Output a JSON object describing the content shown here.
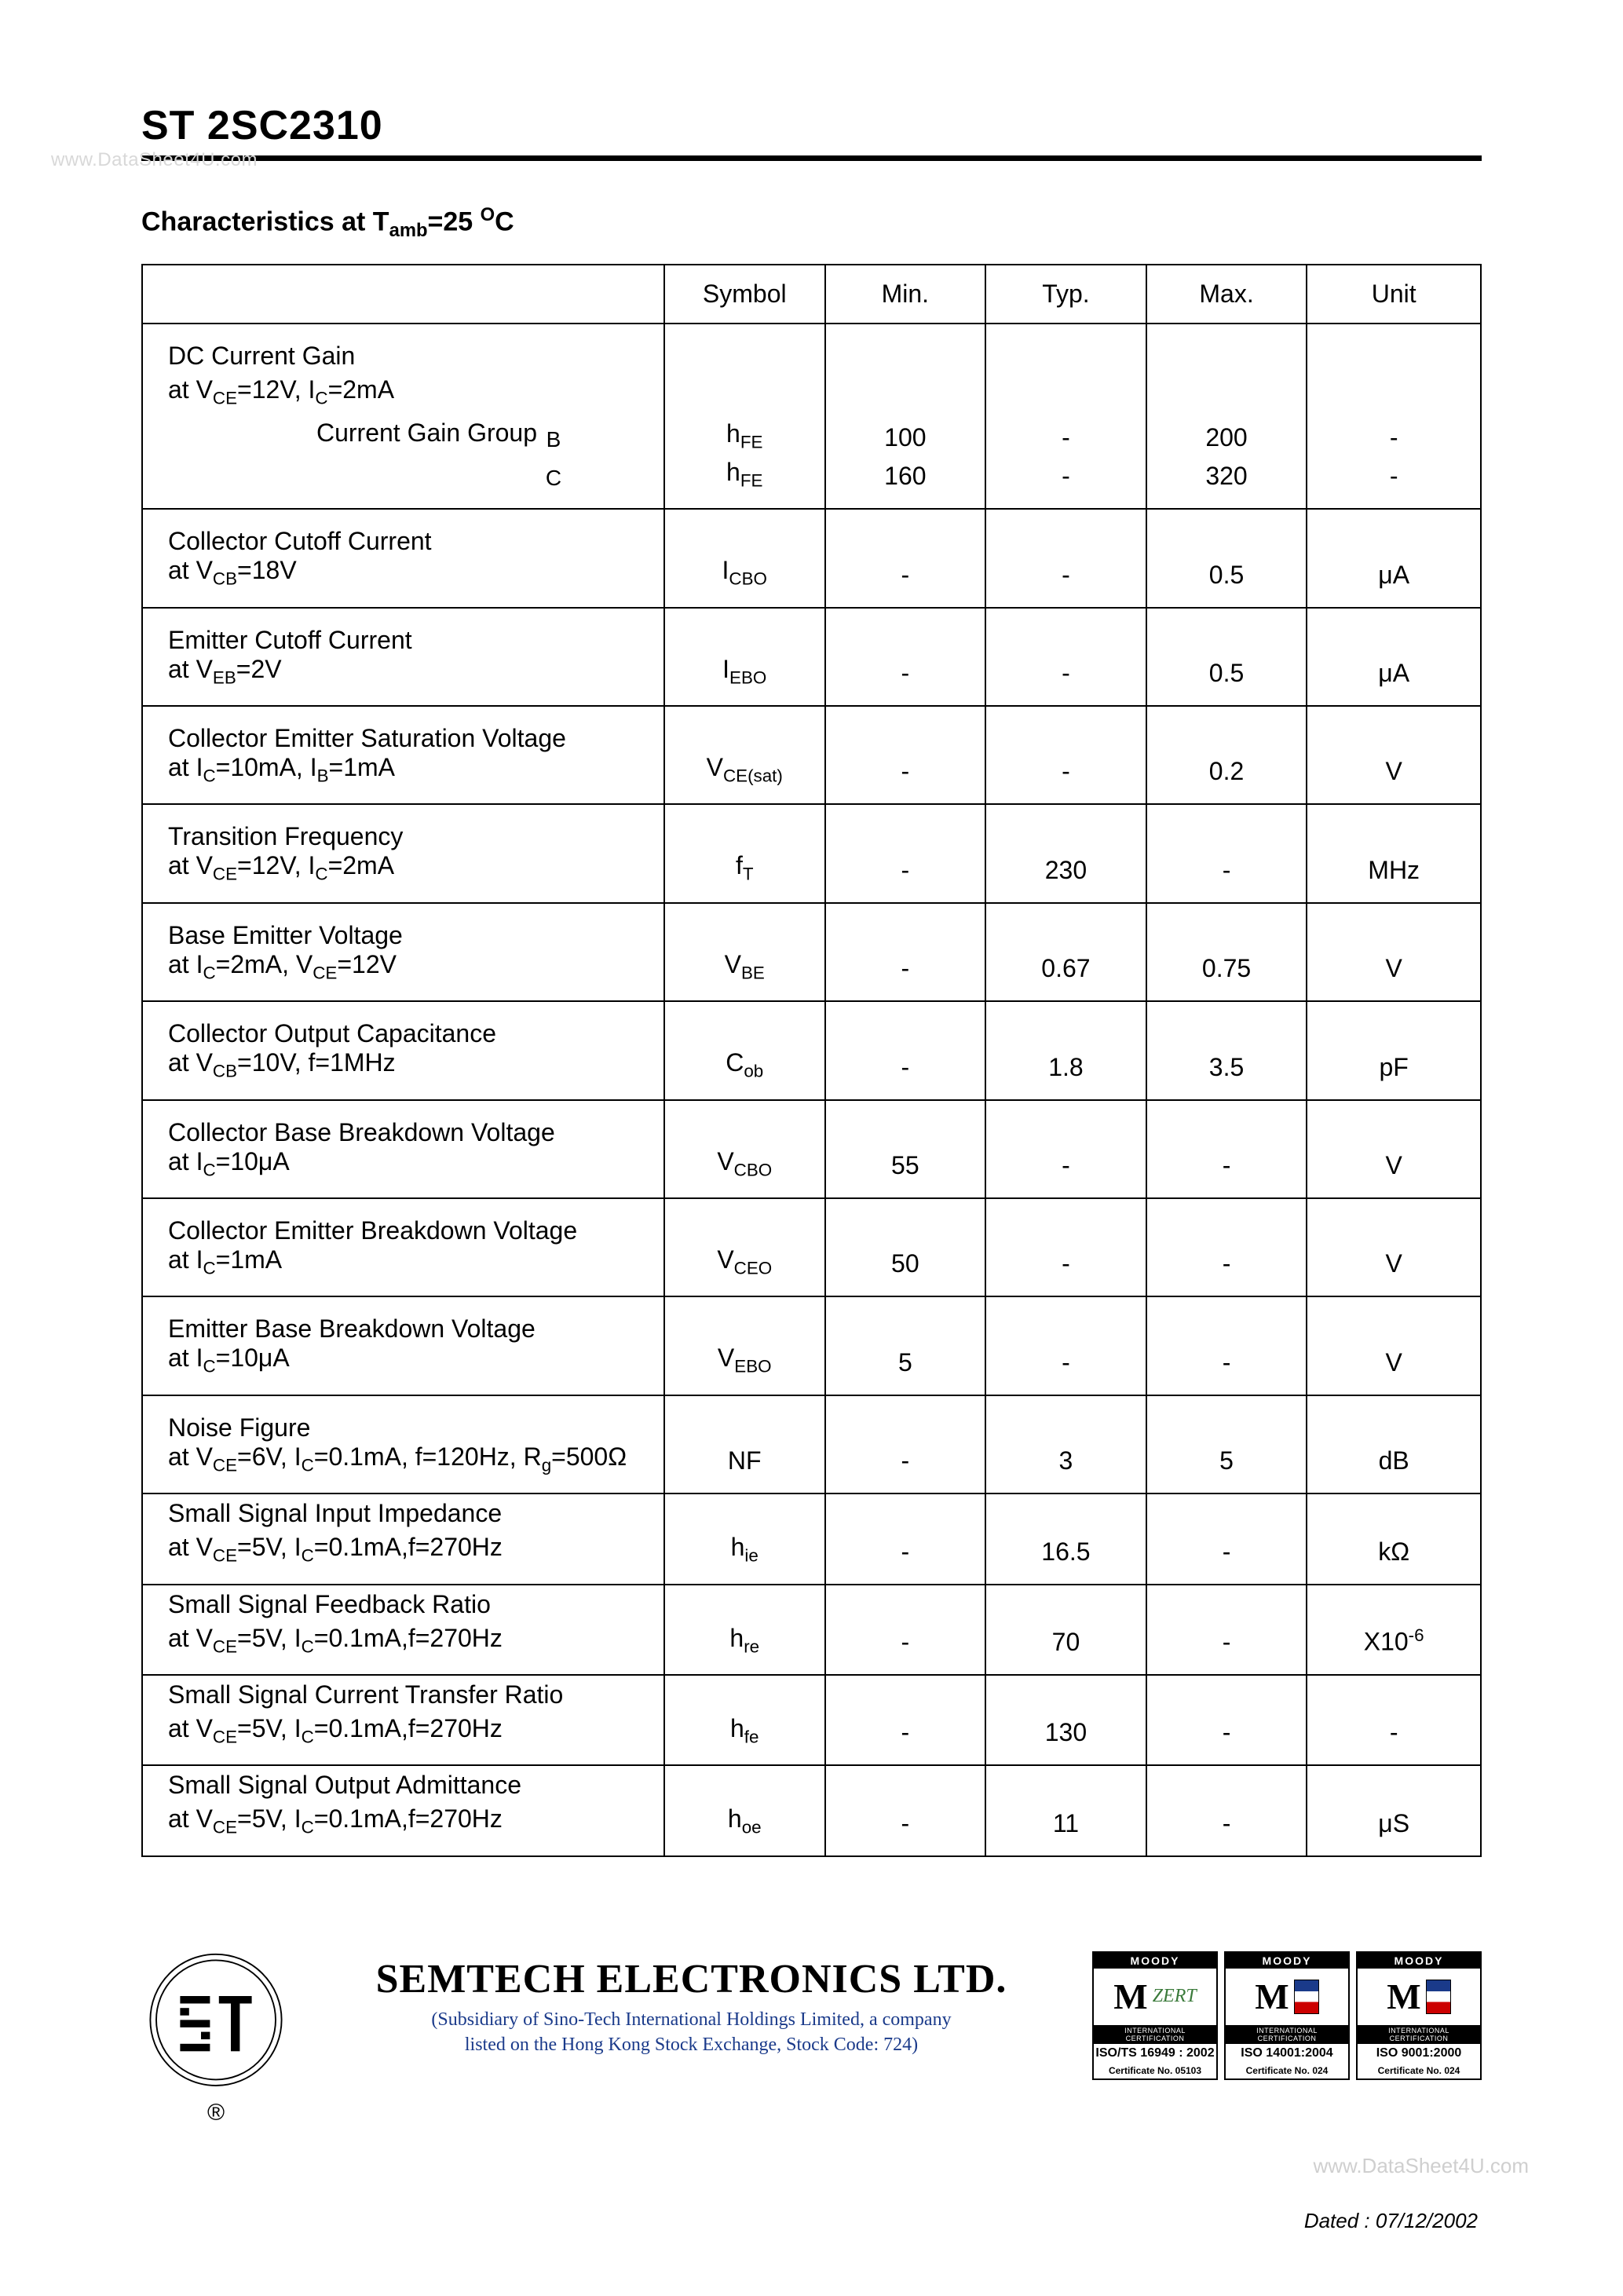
{
  "watermark_top": "www.DataSheet4U.com",
  "part_number": "ST 2SC2310",
  "section_title_html": "Characteristics at T<sub>amb</sub>=25 <sup>O</sup>C",
  "table": {
    "headers": [
      "",
      "Symbol",
      "Min.",
      "Typ.",
      "Max.",
      "Unit"
    ],
    "column_widths_pct": [
      39,
      12,
      12,
      12,
      12,
      13
    ],
    "rows": [
      {
        "lines": [
          {
            "param_html": "DC Current Gain"
          },
          {
            "param_html": "at V<sub>CE</sub>=12V, I<sub>C</sub>=2mA"
          },
          {
            "param_html": "<span class='gain-group-label'>Current Gain Group</span><span class='gain-group-letter'>B</span>",
            "symbol_html": "h<sub>FE</sub>",
            "min": "100",
            "typ": "-",
            "max": "200",
            "unit": "-"
          },
          {
            "param_html": "<span class='gain-group-label'></span><span class='gain-group-letter'>C</span>",
            "symbol_html": "h<sub>FE</sub>",
            "min": "160",
            "typ": "-",
            "max": "320",
            "unit": "-"
          }
        ]
      },
      {
        "lines": [
          {
            "param_html": "Collector Cutoff Current"
          },
          {
            "param_html": "at V<sub>CB</sub>=18V",
            "symbol_html": "I<sub>CBO</sub>",
            "min": "-",
            "typ": "-",
            "max": "0.5",
            "unit": "μA"
          }
        ]
      },
      {
        "lines": [
          {
            "param_html": "Emitter Cutoff Current"
          },
          {
            "param_html": "at V<sub>EB</sub>=2V",
            "symbol_html": "I<sub>EBO</sub>",
            "min": "-",
            "typ": "-",
            "max": "0.5",
            "unit": "μA"
          }
        ]
      },
      {
        "lines": [
          {
            "param_html": "Collector Emitter Saturation Voltage"
          },
          {
            "param_html": "at I<sub>C</sub>=10mA, I<sub>B</sub>=1mA",
            "symbol_html": "V<sub>CE(sat)</sub>",
            "min": "-",
            "typ": "-",
            "max": "0.2",
            "unit": "V"
          }
        ]
      },
      {
        "lines": [
          {
            "param_html": "Transition Frequency"
          },
          {
            "param_html": "at V<sub>CE</sub>=12V, I<sub>C</sub>=2mA",
            "symbol_html": "f<sub>T</sub>",
            "min": "-",
            "typ": "230",
            "max": "-",
            "unit": "MHz"
          }
        ]
      },
      {
        "lines": [
          {
            "param_html": "Base Emitter Voltage"
          },
          {
            "param_html": "at I<sub>C</sub>=2mA, V<sub>CE</sub>=12V",
            "symbol_html": "V<sub>BE</sub>",
            "min": "-",
            "typ": "0.67",
            "max": "0.75",
            "unit": "V"
          }
        ]
      },
      {
        "lines": [
          {
            "param_html": "Collector Output Capacitance"
          },
          {
            "param_html": "at V<sub>CB</sub>=10V, f=1MHz",
            "symbol_html": "C<sub>ob</sub>",
            "min": "-",
            "typ": "1.8",
            "max": "3.5",
            "unit": "pF"
          }
        ]
      },
      {
        "lines": [
          {
            "param_html": "Collector Base Breakdown Voltage"
          },
          {
            "param_html": "at I<sub>C</sub>=10μA",
            "symbol_html": "V<sub>CBO</sub>",
            "min": "55",
            "typ": "-",
            "max": "-",
            "unit": "V"
          }
        ]
      },
      {
        "lines": [
          {
            "param_html": "Collector Emitter Breakdown Voltage"
          },
          {
            "param_html": "at I<sub>C</sub>=1mA",
            "symbol_html": "V<sub>CEO</sub>",
            "min": "50",
            "typ": "-",
            "max": "-",
            "unit": "V"
          }
        ]
      },
      {
        "lines": [
          {
            "param_html": "Emitter Base Breakdown Voltage"
          },
          {
            "param_html": "at I<sub>C</sub>=10μA",
            "symbol_html": "V<sub>EBO</sub>",
            "min": "5",
            "typ": "-",
            "max": "-",
            "unit": "V"
          }
        ]
      },
      {
        "lines": [
          {
            "param_html": "Noise Figure"
          },
          {
            "param_html": "at V<sub>CE</sub>=6V, I<sub>C</sub>=0.1mA, f=120Hz, R<sub>g</sub>=500Ω",
            "symbol_html": "NF",
            "min": "-",
            "typ": "3",
            "max": "5",
            "unit": "dB"
          }
        ]
      },
      {
        "lines": [
          {
            "param_html": "Small Signal Input Impedance"
          },
          {
            "param_html": "at V<sub>CE</sub>=5V, I<sub>C</sub>=0.1mA,f=270Hz",
            "symbol_html": "h<sub>ie</sub>",
            "min": "-",
            "typ": "16.5",
            "max": "-",
            "unit": "kΩ"
          }
        ],
        "compact": true
      },
      {
        "lines": [
          {
            "param_html": "Small Signal Feedback Ratio"
          },
          {
            "param_html": "at V<sub>CE</sub>=5V, I<sub>C</sub>=0.1mA,f=270Hz",
            "symbol_html": "h<sub>re</sub>",
            "min": "-",
            "typ": "70",
            "max": "-",
            "unit": "X10<sup>-6</sup>"
          }
        ],
        "compact": true
      },
      {
        "lines": [
          {
            "param_html": "Small Signal Current Transfer Ratio"
          },
          {
            "param_html": "at V<sub>CE</sub>=5V, I<sub>C</sub>=0.1mA,f=270Hz",
            "symbol_html": "h<sub>fe</sub>",
            "min": "-",
            "typ": "130",
            "max": "-",
            "unit": "-"
          }
        ],
        "compact": true
      },
      {
        "lines": [
          {
            "param_html": "Small Signal Output Admittance"
          },
          {
            "param_html": "at V<sub>CE</sub>=5V, I<sub>C</sub>=0.1mA,f=270Hz",
            "symbol_html": "h<sub>oe</sub>",
            "min": "-",
            "typ": "11",
            "max": "-",
            "unit": "μS"
          }
        ],
        "compact": true
      }
    ]
  },
  "footer": {
    "company": "SEMTECH ELECTRONICS LTD.",
    "subsidiary_line1": "(Subsidiary of Sino-Tech International Holdings Limited, a company",
    "subsidiary_line2": "listed on the Hong Kong Stock Exchange, Stock Code: 724)",
    "registered_mark": "®",
    "certs": [
      {
        "top": "MOODY",
        "body_type": "zert",
        "iso_line": "ISO/TS 16949 : 2002",
        "cert_no": "Certificate No. 05103"
      },
      {
        "top": "MOODY",
        "body_type": "flag",
        "iso_line": "ISO 14001:2004",
        "cert_no": "Certificate No. 024"
      },
      {
        "top": "MOODY",
        "body_type": "flag",
        "iso_line": "ISO 9001:2000",
        "cert_no": "Certificate No. 024"
      }
    ]
  },
  "watermark_bottom": "www.DataSheet4U.com",
  "dated": "Dated : 07/12/2002"
}
